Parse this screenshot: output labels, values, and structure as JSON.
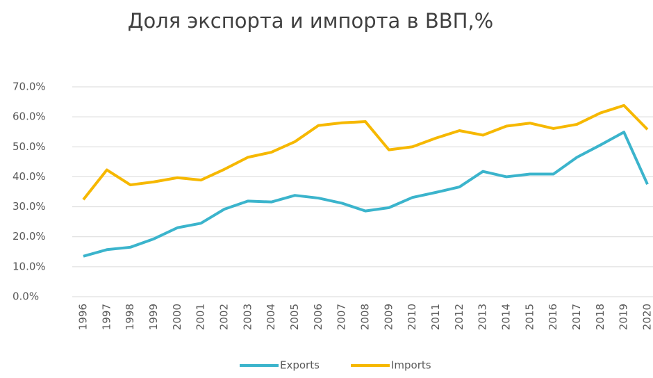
{
  "chart_data": {
    "type": "line",
    "title": "Доля экспорта и импорта в ВВП,%",
    "categories": [
      "1996",
      "1997",
      "1998",
      "1999",
      "2000",
      "2001",
      "2002",
      "2003",
      "2004",
      "2005",
      "2006",
      "2007",
      "2008",
      "2009",
      "2010",
      "2011",
      "2012",
      "2013",
      "2014",
      "2015",
      "2016",
      "2017",
      "2018",
      "2019",
      "2020"
    ],
    "series": [
      {
        "name": "Exports",
        "color": "#3bb4cc",
        "values": [
          13.5,
          15.7,
          16.5,
          19.3,
          23.0,
          24.5,
          29.2,
          31.9,
          31.6,
          33.8,
          32.9,
          31.2,
          28.6,
          29.7,
          33.1,
          34.8,
          36.6,
          41.8,
          40.0,
          40.9,
          40.9,
          46.5,
          50.6,
          54.9,
          37.5
        ]
      },
      {
        "name": "Imports",
        "color": "#f6b800",
        "values": [
          32.4,
          42.3,
          37.3,
          38.3,
          39.7,
          38.9,
          42.5,
          46.5,
          48.2,
          51.7,
          57.1,
          58.0,
          58.4,
          49.0,
          50.0,
          52.9,
          55.4,
          53.9,
          56.9,
          57.9,
          56.1,
          57.5,
          61.3,
          63.8,
          55.8
        ]
      }
    ],
    "ylim": [
      0,
      70
    ],
    "yticks": [
      {
        "value": 0,
        "label": "0.0%"
      },
      {
        "value": 10,
        "label": "10.0%"
      },
      {
        "value": 20,
        "label": "20.0%"
      },
      {
        "value": 30,
        "label": "30.0%"
      },
      {
        "value": 40,
        "label": "40.0%"
      },
      {
        "value": 50,
        "label": "50.0%"
      },
      {
        "value": 60,
        "label": "60.0%"
      },
      {
        "value": 70,
        "label": "70.0%"
      }
    ],
    "grid": true,
    "legend": "bottom"
  }
}
